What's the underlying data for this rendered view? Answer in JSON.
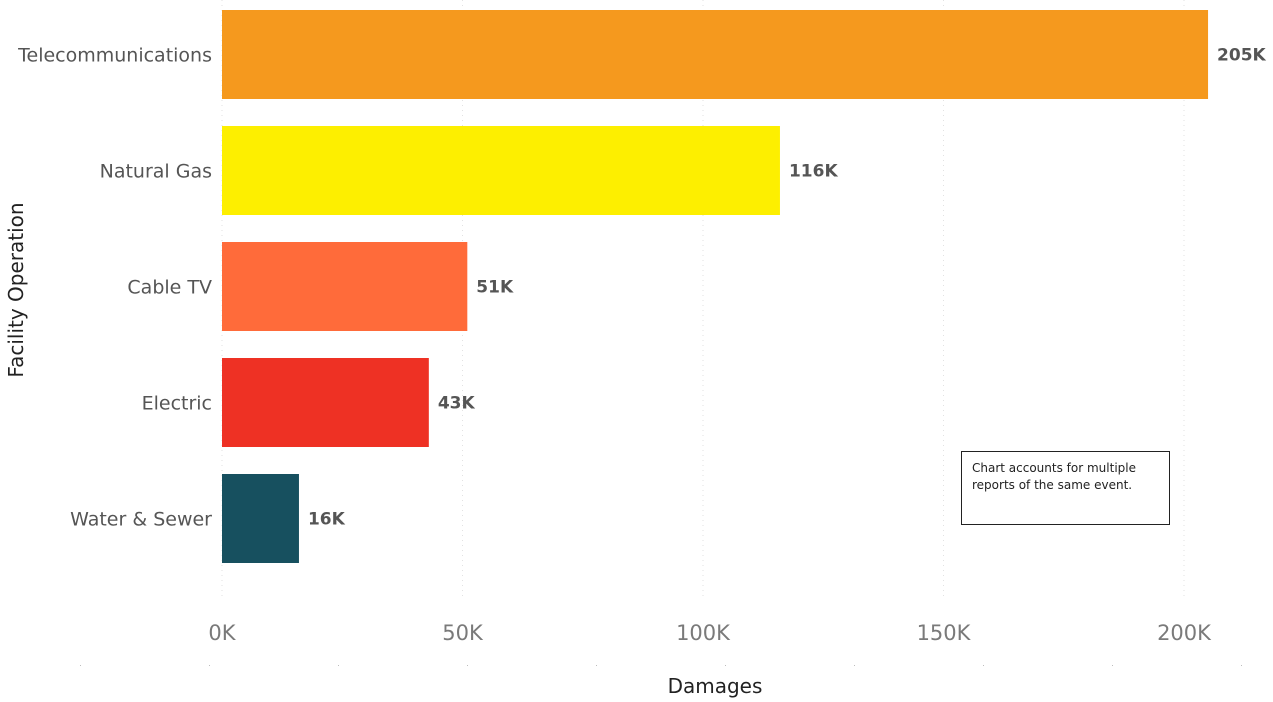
{
  "chart_data": {
    "type": "bar",
    "orientation": "horizontal",
    "categories": [
      "Telecommunications",
      "Natural Gas",
      "Cable TV",
      "Electric",
      "Water & Sewer"
    ],
    "values": [
      205000,
      116000,
      51000,
      43000,
      16000
    ],
    "data_labels": [
      "205K",
      "116K",
      "51K",
      "43K",
      "16K"
    ],
    "colors": [
      "#F5991E",
      "#FDEF00",
      "#FF6B3A",
      "#EE3124",
      "#17505F"
    ],
    "xlabel": "Damages",
    "ylabel": "Facility Operation",
    "xlim": [
      0,
      210000
    ],
    "x_ticks": [
      0,
      50000,
      100000,
      150000,
      200000
    ],
    "x_tick_labels": [
      "0K",
      "50K",
      "100K",
      "150K",
      "200K"
    ],
    "grid": true,
    "legend": "none"
  },
  "note": {
    "text": "Chart accounts for multiple reports of the same event."
  }
}
